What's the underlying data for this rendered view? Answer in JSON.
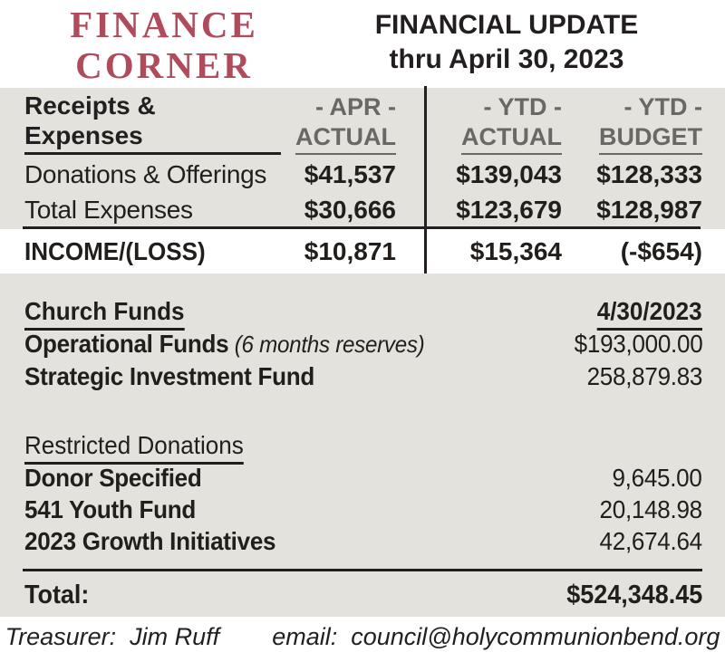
{
  "header": {
    "logo_line1": "FINANCE",
    "logo_line2": "CORNER",
    "title_line1": "FINANCIAL UPDATE",
    "title_line2": "thru April 30, 2023"
  },
  "receipts": {
    "section_label": "Receipts & Expenses",
    "col_apr": {
      "line1": "- APR -",
      "line2": "ACTUAL"
    },
    "col_ytd_actual": {
      "line1": "- YTD -",
      "line2": "ACTUAL"
    },
    "col_ytd_budget": {
      "line1": "- YTD -",
      "line2": "BUDGET"
    },
    "rows": [
      {
        "label": "Donations & Offerings",
        "apr_actual": "$41,537",
        "ytd_actual": "$139,043",
        "ytd_budget": "$128,333"
      },
      {
        "label": "Total Expenses",
        "apr_actual": "$30,666",
        "ytd_actual": "$123,679",
        "ytd_budget": "$128,987"
      }
    ],
    "income": {
      "label": "INCOME/(LOSS)",
      "apr_actual": "$10,871",
      "ytd_actual": "$15,364",
      "ytd_budget": "(-$654)"
    }
  },
  "church_funds": {
    "section_label": "Church Funds",
    "date_header": "4/30/2023",
    "rows": [
      {
        "label": "Operational Funds",
        "note": "(6 months reserves)",
        "value": "$193,000.00"
      },
      {
        "label": "Strategic Investment Fund",
        "note": "",
        "value": "258,879.83"
      }
    ]
  },
  "restricted": {
    "section_label": "Restricted Donations",
    "rows": [
      {
        "label": "Donor Specified",
        "value": "9,645.00"
      },
      {
        "label": "541 Youth Fund",
        "value": "20,148.98"
      },
      {
        "label": "2023 Growth Initiatives",
        "value": "42,674.64"
      }
    ]
  },
  "total": {
    "label": "Total:",
    "value": "$524,348.45"
  },
  "footer": {
    "treasurer_label": "Treasurer:",
    "treasurer_name": "Jim Ruff",
    "email_label": "email:",
    "email_value": "council@holycommunionbend.org"
  },
  "colors": {
    "brand_red": "#b04b5c",
    "band_gray": "#e4e2dd",
    "muted_header_gray": "#6a6865",
    "text_black": "#231f20"
  }
}
